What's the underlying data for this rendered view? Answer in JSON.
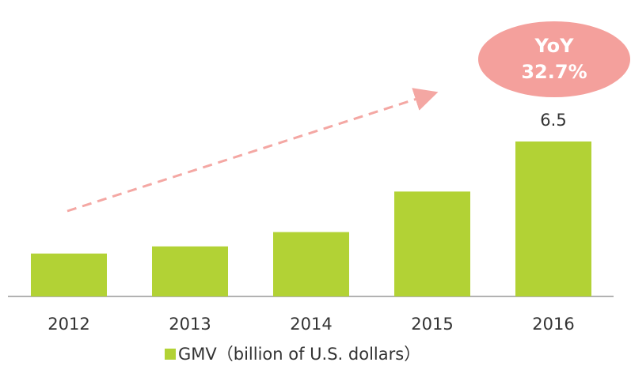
{
  "chart_data": {
    "type": "bar",
    "categories": [
      "2012",
      "2013",
      "2014",
      "2015",
      "2016"
    ],
    "series": [
      {
        "name": "GMV（billion of U.S. dollars）",
        "color": "#b2d235",
        "values": [
          1.8,
          2.1,
          2.7,
          4.4,
          6.5
        ]
      }
    ],
    "value_labels": [
      null,
      null,
      null,
      null,
      "6.5"
    ],
    "annotation": {
      "lines": [
        "YoY",
        "32.7%"
      ],
      "color": "#f4a09c"
    }
  }
}
